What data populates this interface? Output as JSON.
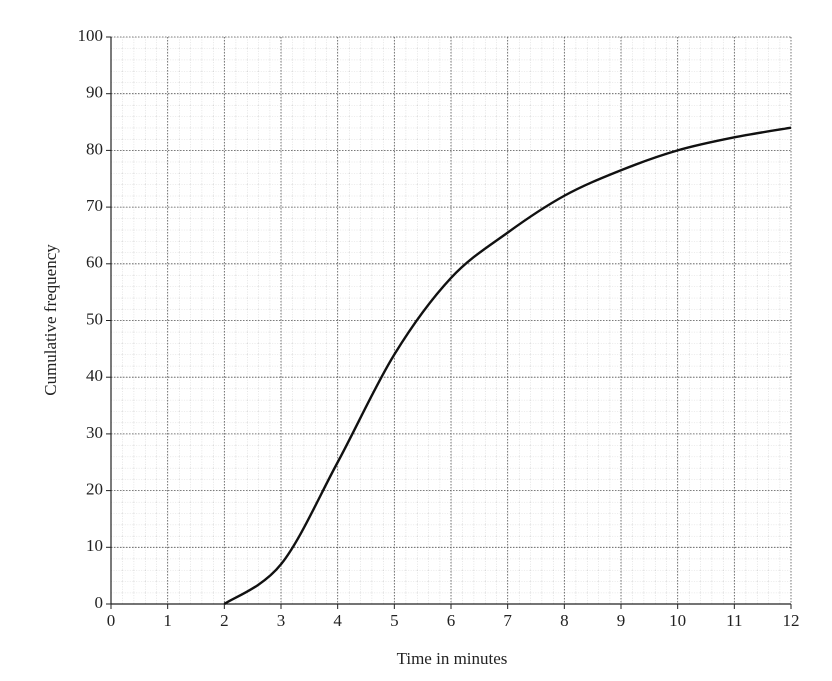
{
  "chart_data": {
    "type": "line",
    "x_label": "Time in minutes",
    "y_label": "Cumulative frequency",
    "x": [
      2,
      3,
      4,
      5,
      6,
      7,
      8,
      9,
      10,
      11,
      12
    ],
    "series": [
      {
        "color": "#111111",
        "values": [
          0,
          7,
          25,
          44,
          57.5,
          65.5,
          72,
          76.5,
          80,
          82.3,
          84
        ]
      }
    ],
    "xlim": [
      0,
      12
    ],
    "xticks": [
      0,
      1,
      2,
      3,
      4,
      5,
      6,
      7,
      8,
      9,
      10,
      11,
      12
    ],
    "ylim": [
      0,
      100
    ],
    "yticks": [
      0,
      10,
      20,
      30,
      40,
      50,
      60,
      70,
      80,
      90,
      100
    ],
    "grid": true
  }
}
